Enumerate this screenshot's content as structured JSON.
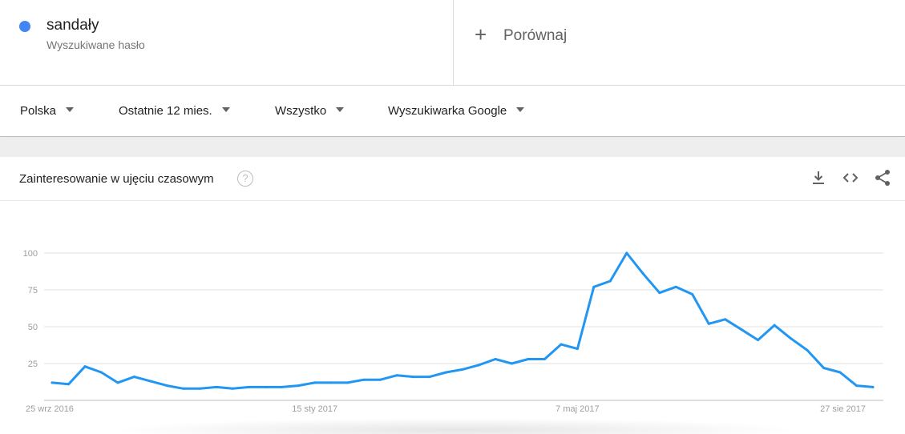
{
  "term": {
    "name": "sandały",
    "subtitle": "Wyszukiwane hasło",
    "color": "#4285f4"
  },
  "compare": {
    "icon": "plus-icon",
    "label": "Porównaj"
  },
  "filters": [
    {
      "label": "Polska"
    },
    {
      "label": "Ostatnie 12 mies."
    },
    {
      "label": "Wszystko"
    },
    {
      "label": "Wyszukiwarka Google"
    }
  ],
  "card": {
    "title": "Zainteresowanie w ujęciu czasowym",
    "help_icon": "?",
    "actions": [
      "download-icon",
      "embed-icon",
      "share-icon"
    ]
  },
  "chart_data": {
    "type": "line",
    "title": "",
    "xlabel": "",
    "ylabel": "",
    "ylim": [
      0,
      100
    ],
    "yticks": [
      25,
      50,
      75,
      100
    ],
    "xticks": [
      "25 wrz 2016",
      "15 sty 2017",
      "7 maj 2017",
      "27 sie 2017"
    ],
    "xtick_index": [
      0,
      16,
      32,
      48
    ],
    "grid": true,
    "series": [
      {
        "name": "sandały",
        "color": "#2196f3",
        "values": [
          12,
          11,
          23,
          19,
          12,
          16,
          13,
          10,
          8,
          8,
          9,
          8,
          9,
          9,
          9,
          10,
          12,
          12,
          12,
          14,
          14,
          17,
          16,
          16,
          19,
          21,
          24,
          28,
          25,
          28,
          28,
          38,
          35,
          77,
          81,
          100,
          86,
          73,
          77,
          72,
          52,
          55,
          48,
          41,
          51,
          42,
          34,
          22,
          19,
          10,
          9
        ]
      }
    ]
  }
}
